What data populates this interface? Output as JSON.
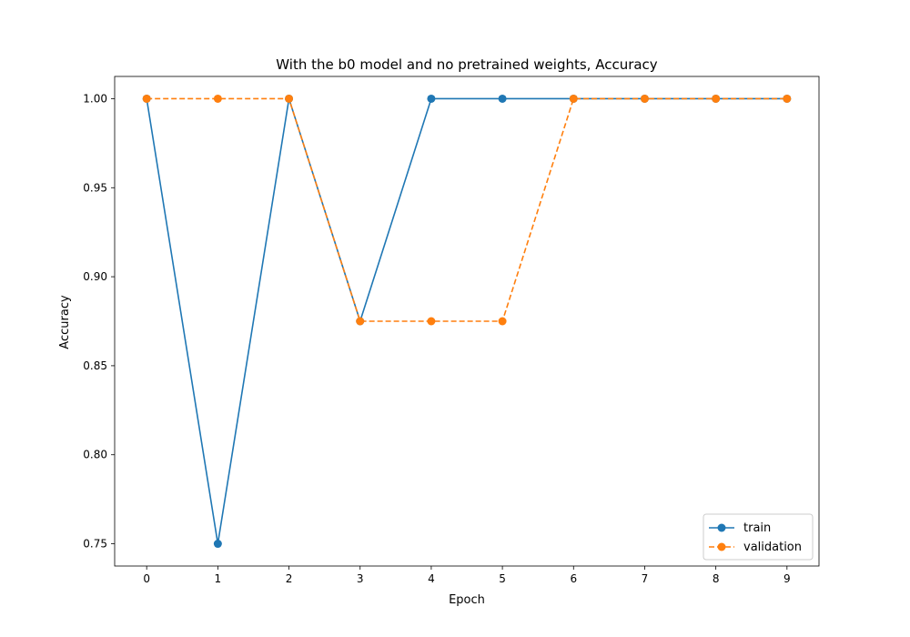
{
  "chart_data": {
    "type": "line",
    "title": "With the b0 model and no pretrained weights, Accuracy",
    "xlabel": "Epoch",
    "ylabel": "Accuracy",
    "x": [
      0,
      1,
      2,
      3,
      4,
      5,
      6,
      7,
      8,
      9
    ],
    "xticks": [
      "0",
      "1",
      "2",
      "3",
      "4",
      "5",
      "6",
      "7",
      "8",
      "9"
    ],
    "yticks": [
      "0.75",
      "0.80",
      "0.85",
      "0.90",
      "0.95",
      "1.00"
    ],
    "xlim": [
      -0.45,
      9.45
    ],
    "ylim": [
      0.7375,
      1.0125
    ],
    "grid": false,
    "legend_position": "lower-right",
    "series": [
      {
        "name": "train",
        "values": [
          1.0,
          0.75,
          1.0,
          0.875,
          1.0,
          1.0,
          1.0,
          1.0,
          1.0,
          1.0
        ],
        "color": "#1f77b4",
        "linestyle": "solid",
        "marker": "circle"
      },
      {
        "name": "validation",
        "values": [
          1.0,
          1.0,
          1.0,
          0.875,
          0.875,
          0.875,
          1.0,
          1.0,
          1.0,
          1.0
        ],
        "color": "#ff7f0e",
        "linestyle": "dashed",
        "marker": "circle"
      }
    ]
  }
}
